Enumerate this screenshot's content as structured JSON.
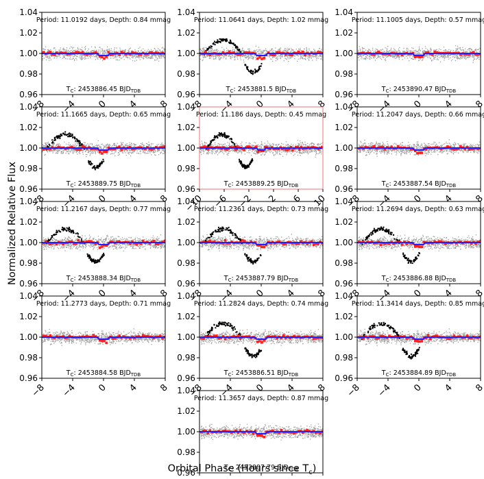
{
  "figure": {
    "ylabel": "Normalized Relative Flux",
    "xlabel_main": "Orbital Phase (Hours since T",
    "xlabel_sub": "c",
    "xlabel_end": ")",
    "colors": {
      "model": "#1f1fff",
      "binned": "#ff1f1f",
      "data": "#8c8c8c",
      "in_transit": "#000000",
      "highlight_border": "#e87474"
    }
  },
  "chart_data": [
    {
      "type": "scatter",
      "period": "11.0192",
      "depth": "0.84",
      "tc": "2453886.45",
      "xlim": [
        -8,
        8
      ],
      "xticks": [
        -8,
        -4,
        0,
        4,
        8
      ],
      "ylim": [
        0.96,
        1.04
      ],
      "yticks": [
        "0.96",
        "0.98",
        "1.00",
        "1.02",
        "1.04"
      ],
      "dip": false,
      "highlight": false,
      "series": [
        {
          "values_approx": "flat ~1.00"
        }
      ]
    },
    {
      "type": "scatter",
      "period": "11.0641",
      "depth": "1.02",
      "tc": "2453881.5",
      "xlim": [
        -8,
        8
      ],
      "xticks": [
        -8,
        -4,
        0,
        4,
        8
      ],
      "ylim": [
        0.96,
        1.04
      ],
      "yticks": [
        "0.96",
        "0.98",
        "1.00",
        "1.02",
        "1.04"
      ],
      "dip": true,
      "highlight": false,
      "series": [
        {
          "values_approx": "black hump -6..-2 up to 1.015, dip -1..0 to 0.985"
        }
      ]
    },
    {
      "type": "scatter",
      "period": "11.1005",
      "depth": "0.57",
      "tc": "2453890.47",
      "xlim": [
        -8,
        8
      ],
      "xticks": [
        -8,
        -4,
        0,
        4,
        8
      ],
      "ylim": [
        0.96,
        1.04
      ],
      "yticks": [
        "0.96",
        "0.98",
        "1.00",
        "1.02",
        "1.04"
      ],
      "dip": false,
      "highlight": false,
      "series": [
        {
          "values_approx": "flat ~1.00"
        }
      ]
    },
    {
      "type": "scatter",
      "period": "11.1665",
      "depth": "0.65",
      "tc": "2453889.75",
      "xlim": [
        -8,
        8
      ],
      "xticks": [
        -8,
        -4,
        0,
        4,
        8
      ],
      "ylim": [
        0.96,
        1.04
      ],
      "yticks": [
        "0.96",
        "0.98",
        "1.00",
        "1.02",
        "1.04"
      ],
      "dip": true,
      "highlight": false,
      "series": [
        {
          "values_approx": "black hump and dip"
        }
      ]
    },
    {
      "type": "scatter",
      "period": "11.186",
      "depth": "0.45",
      "tc": "2453889.25",
      "xlim": [
        -10,
        10
      ],
      "xticks": [
        -10,
        -6,
        -2,
        2,
        6,
        10
      ],
      "ylim": [
        0.96,
        1.04
      ],
      "yticks": [
        "0.96",
        "0.98",
        "1.00",
        "1.02",
        "1.04"
      ],
      "dip": true,
      "highlight": true,
      "series": [
        {
          "values_approx": "black hump and dip"
        }
      ]
    },
    {
      "type": "scatter",
      "period": "11.2047",
      "depth": "0.66",
      "tc": "2453887.54",
      "xlim": [
        -8,
        8
      ],
      "xticks": [
        -8,
        -4,
        0,
        4,
        8
      ],
      "ylim": [
        0.96,
        1.04
      ],
      "yticks": [
        "0.96",
        "0.98",
        "1.00",
        "1.02",
        "1.04"
      ],
      "dip": false,
      "highlight": false,
      "series": [
        {
          "values_approx": "flat ~1.00"
        }
      ]
    },
    {
      "type": "scatter",
      "period": "11.2167",
      "depth": "0.77",
      "tc": "2453888.34",
      "xlim": [
        -8,
        8
      ],
      "xticks": [
        -8,
        -4,
        0,
        4,
        8
      ],
      "ylim": [
        0.96,
        1.04
      ],
      "yticks": [
        "0.96",
        "0.98",
        "1.00",
        "1.02",
        "1.04"
      ],
      "dip": true,
      "highlight": false,
      "series": [
        {
          "values_approx": "black hump and dip"
        }
      ]
    },
    {
      "type": "scatter",
      "period": "11.2361",
      "depth": "0.73",
      "tc": "2453887.79",
      "xlim": [
        -8,
        8
      ],
      "xticks": [
        -8,
        -4,
        0,
        4,
        8
      ],
      "ylim": [
        0.96,
        1.04
      ],
      "yticks": [
        "0.96",
        "0.98",
        "1.00",
        "1.02",
        "1.04"
      ],
      "dip": true,
      "highlight": false,
      "series": [
        {
          "values_approx": "black hump and dip"
        }
      ]
    },
    {
      "type": "scatter",
      "period": "11.2694",
      "depth": "0.63",
      "tc": "2453886.88",
      "xlim": [
        -8,
        8
      ],
      "xticks": [
        -8,
        -4,
        0,
        4,
        8
      ],
      "ylim": [
        0.96,
        1.04
      ],
      "yticks": [
        "0.96",
        "0.98",
        "1.00",
        "1.02",
        "1.04"
      ],
      "dip": true,
      "highlight": false,
      "series": [
        {
          "values_approx": "black hump and dip"
        }
      ]
    },
    {
      "type": "scatter",
      "period": "11.2773",
      "depth": "0.71",
      "tc": "2453884.58",
      "xlim": [
        -8,
        8
      ],
      "xticks": [
        -8,
        -4,
        0,
        4,
        8
      ],
      "ylim": [
        0.96,
        1.04
      ],
      "yticks": [
        "0.96",
        "0.98",
        "1.00",
        "1.02",
        "1.04"
      ],
      "dip": false,
      "highlight": false,
      "series": [
        {
          "values_approx": "flat ~1.00"
        }
      ]
    },
    {
      "type": "scatter",
      "period": "11.2824",
      "depth": "0.74",
      "tc": "2453886.51",
      "xlim": [
        -8,
        8
      ],
      "xticks": [
        -8,
        -4,
        0,
        4,
        8
      ],
      "ylim": [
        0.96,
        1.04
      ],
      "yticks": [
        "0.96",
        "0.98",
        "1.00",
        "1.02",
        "1.04"
      ],
      "dip": true,
      "highlight": false,
      "series": [
        {
          "values_approx": "black hump and dip"
        }
      ]
    },
    {
      "type": "scatter",
      "period": "11.3414",
      "depth": "0.85",
      "tc": "2453884.89",
      "xlim": [
        -8,
        8
      ],
      "xticks": [
        -8,
        -4,
        0,
        4,
        8
      ],
      "ylim": [
        0.96,
        1.04
      ],
      "yticks": [
        "0.96",
        "0.98",
        "1.00",
        "1.02",
        "1.04"
      ],
      "dip": true,
      "highlight": false,
      "series": [
        {
          "values_approx": "black hump and dip"
        }
      ]
    },
    {
      "type": "scatter",
      "period": "11.3657",
      "depth": "0.87",
      "tc": "2453887.79",
      "xlim": [
        -8,
        8
      ],
      "xticks": [
        -8,
        -4,
        0,
        4,
        8
      ],
      "ylim": [
        0.96,
        1.04
      ],
      "yticks": [
        "0.96",
        "0.98",
        "1.00",
        "1.02",
        "1.04"
      ],
      "dip": false,
      "highlight": false,
      "series": [
        {
          "values_approx": "flat ~1.00"
        }
      ]
    }
  ]
}
